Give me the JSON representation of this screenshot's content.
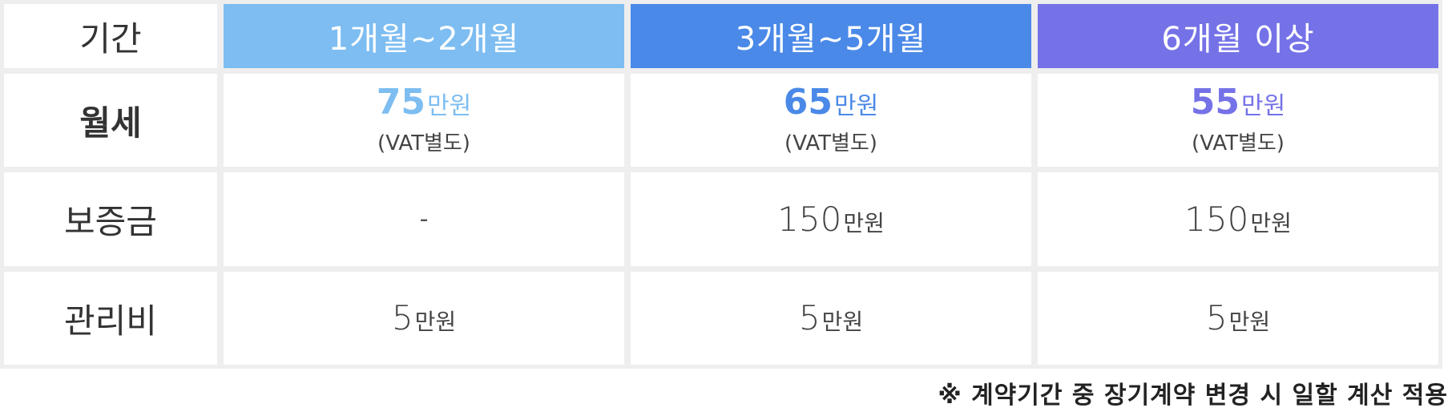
{
  "header": {
    "period_label": "기간",
    "col1": "1개월~2개월",
    "col2": "3개월~5개월",
    "col3": "6개월 이상"
  },
  "colors": {
    "col1": "#7dbdf1",
    "col2": "#4a89e8",
    "col3": "#7572e8"
  },
  "rows": {
    "rent": {
      "label": "월세",
      "col1": {
        "amount": "75",
        "unit": "만원",
        "note": "(VAT별도)"
      },
      "col2": {
        "amount": "65",
        "unit": "만원",
        "note": "(VAT별도)"
      },
      "col3": {
        "amount": "55",
        "unit": "만원",
        "note": "(VAT별도)"
      }
    },
    "deposit": {
      "label": "보증금",
      "col1": {
        "text": "-"
      },
      "col2": {
        "amount": "150",
        "unit": "만원"
      },
      "col3": {
        "amount": "150",
        "unit": "만원"
      }
    },
    "maintenance": {
      "label": "관리비",
      "col1": {
        "amount": "5",
        "unit": "만원"
      },
      "col2": {
        "amount": "5",
        "unit": "만원"
      },
      "col3": {
        "amount": "5",
        "unit": "만원"
      }
    }
  },
  "footnote": "※ 계약기간 중 장기계약 변경 시 일할 계산 적용"
}
